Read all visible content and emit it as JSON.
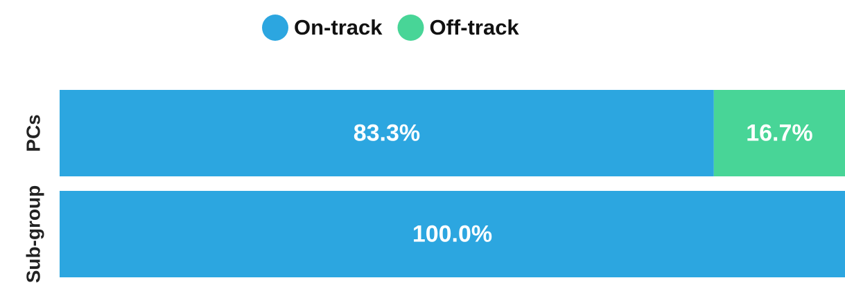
{
  "chart_data": {
    "type": "stacked-bar-horizontal",
    "categories": [
      "PCs",
      "Sub-group"
    ],
    "series": [
      {
        "name": "On-track",
        "color": "#2ca6e0",
        "values": [
          83.3,
          100.0
        ],
        "value_labels": [
          "83.3%",
          "100.0%"
        ]
      },
      {
        "name": "Off-track",
        "color": "#48d597",
        "values": [
          16.7,
          0
        ],
        "value_labels": [
          "16.7%",
          null
        ]
      }
    ],
    "xlim": [
      0,
      100
    ],
    "legend": "top"
  }
}
